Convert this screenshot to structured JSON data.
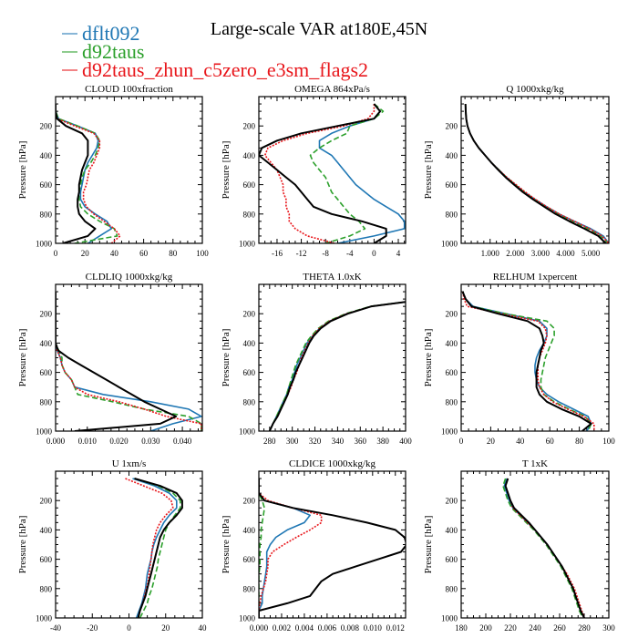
{
  "chart_data": {
    "type": "line",
    "title": "Large-scale VAR at180E,45N",
    "ylabel": "Pressure [hPa]",
    "ylim": [
      1000,
      0
    ],
    "yticks": [
      200,
      400,
      600,
      800,
      1000
    ],
    "legend_placement": "top-left",
    "series_meta": [
      {
        "key": "b",
        "name": "dflt092",
        "color": "#1f77b4",
        "style": "solid"
      },
      {
        "key": "g",
        "name": "d92taus",
        "color": "#2ca02c",
        "style": "dashed"
      },
      {
        "key": "r",
        "name": "d92taus_zhun_c5zero_e3sm_flags2",
        "color": "#e8161b",
        "style": "dotted"
      },
      {
        "key": "k",
        "color": "#000000",
        "style": "solid"
      }
    ],
    "pressure": [
      50,
      100,
      150,
      200,
      250,
      300,
      350,
      400,
      450,
      500,
      550,
      600,
      650,
      700,
      750,
      800,
      850,
      900,
      950,
      1000
    ],
    "panels": [
      {
        "title": "CLOUD 100xfraction",
        "xlim": [
          0,
          100
        ],
        "xticks": [
          0,
          20,
          40,
          60,
          80,
          100
        ],
        "xticklabels": [
          "0",
          "20",
          "40",
          "60",
          "80",
          "100"
        ],
        "b": [
          0,
          0,
          2,
          15,
          27,
          29,
          28,
          25,
          22,
          20,
          19,
          18,
          17,
          17,
          20,
          27,
          35,
          38,
          30,
          22
        ],
        "g": [
          0,
          0,
          2,
          15,
          27,
          30,
          29,
          27,
          24,
          20,
          18,
          17,
          16,
          16,
          17,
          22,
          30,
          40,
          42,
          13
        ],
        "r": [
          0,
          0,
          1,
          13,
          26,
          30,
          30,
          28,
          26,
          23,
          22,
          21,
          19,
          19,
          21,
          26,
          33,
          40,
          44,
          38
        ],
        "k": [
          0,
          0,
          1,
          7,
          18,
          22,
          22,
          22,
          20,
          18,
          17,
          16,
          16,
          15,
          15,
          16,
          20,
          27,
          22,
          5
        ]
      },
      {
        "title": "OMEGA 864xPa/s",
        "xlim": [
          -19,
          5.2
        ],
        "xticks": [
          -16,
          -12,
          -8,
          -4,
          0,
          4
        ],
        "xticklabels": [
          "-16",
          "-12",
          "-8",
          "-4",
          "0",
          "4"
        ],
        "b": [
          0,
          1,
          0,
          -4,
          -7,
          -9,
          -9,
          -7,
          -6,
          -5,
          -4,
          -3,
          -1.5,
          0,
          2,
          4,
          5,
          5,
          0,
          -6
        ],
        "g": [
          0,
          1.5,
          0,
          -4,
          -4.5,
          -7,
          -9,
          -10.5,
          -10,
          -9,
          -8,
          -7.5,
          -7,
          -6,
          -5,
          -4,
          -2.5,
          -1.5,
          -4,
          -8
        ],
        "r": [
          0,
          0,
          -1,
          -5,
          -11,
          -15,
          -17.5,
          -18,
          -17,
          -16,
          -15.5,
          -15,
          -15,
          -14.5,
          -14.5,
          -14,
          -14,
          -13,
          -11,
          -6.5
        ],
        "k": [
          0,
          1,
          0,
          -6,
          -12,
          -16,
          -18.5,
          -19,
          -17.5,
          -16,
          -14.5,
          -13,
          -12,
          -11,
          -10,
          -7,
          -2,
          2,
          2,
          0
        ]
      },
      {
        "title": "Q 1000xkg/kg",
        "xlim": [
          -0.15,
          5.72
        ],
        "xticks": [
          1,
          2,
          3,
          4,
          5
        ],
        "xticklabels": [
          "1.000",
          "2.000",
          "3.000",
          "4.000",
          "5.000"
        ],
        "b": [
          0.02,
          0.03,
          0.05,
          0.1,
          0.2,
          0.35,
          0.55,
          0.8,
          1.05,
          1.35,
          1.65,
          2.0,
          2.35,
          2.78,
          3.25,
          3.75,
          4.35,
          5.0,
          5.5,
          5.72
        ],
        "g": [
          0.02,
          0.03,
          0.05,
          0.1,
          0.2,
          0.35,
          0.55,
          0.8,
          1.05,
          1.35,
          1.65,
          2.0,
          2.35,
          2.75,
          3.2,
          3.7,
          4.25,
          4.9,
          5.4,
          5.7
        ],
        "r": [
          0.02,
          0.03,
          0.05,
          0.1,
          0.2,
          0.35,
          0.55,
          0.8,
          1.05,
          1.35,
          1.67,
          2.03,
          2.4,
          2.8,
          3.25,
          3.75,
          4.35,
          4.95,
          5.45,
          5.72
        ],
        "k": [
          0.02,
          0.03,
          0.05,
          0.1,
          0.2,
          0.35,
          0.55,
          0.8,
          1.05,
          1.33,
          1.62,
          1.95,
          2.3,
          2.7,
          3.15,
          3.6,
          4.15,
          4.75,
          5.3,
          5.6
        ]
      },
      {
        "title": "CLDLIQ 1000xkg/kg",
        "xlim": [
          0,
          0.0463
        ],
        "xticks": [
          0,
          0.01,
          0.02,
          0.03,
          0.04
        ],
        "xticklabels": [
          "0.000",
          "0.010",
          "0.020",
          "0.030",
          "0.040"
        ],
        "b": [
          0,
          0,
          0,
          0,
          0,
          0,
          0,
          0,
          0.0005,
          0.0015,
          0.002,
          0.003,
          0.005,
          0.006,
          0.015,
          0.03,
          0.042,
          0.046,
          0.037,
          0.03
        ],
        "g": [
          0,
          0,
          0,
          0,
          0,
          0,
          0,
          0,
          0.001,
          0.002,
          0.002,
          0.003,
          0.005,
          0.006,
          0.007,
          0.018,
          0.028,
          0.042,
          0.046,
          0.046
        ],
        "r": [
          0,
          0,
          0,
          0,
          0,
          0,
          0,
          0,
          0.0005,
          0.0015,
          0.002,
          0.003,
          0.005,
          0.006,
          0.01,
          0.02,
          0.028,
          0.035,
          0.046,
          0.046
        ],
        "k": [
          0,
          0,
          0,
          0,
          0,
          0,
          0,
          0,
          0.0008,
          0.004,
          0.008,
          0.012,
          0.016,
          0.02,
          0.024,
          0.028,
          0.033,
          0.038,
          0.033,
          0.006
        ]
      },
      {
        "title": "THETA 1.0xK",
        "xlim": [
          270.5,
          400
        ],
        "xticks": [
          280,
          300,
          320,
          340,
          360,
          380,
          400
        ],
        "xticklabels": [
          "280",
          "300",
          "320",
          "340",
          "360",
          "380",
          "400"
        ],
        "b": [
          460,
          420,
          370,
          348,
          333,
          324,
          318,
          313,
          310,
          307,
          304,
          302,
          300,
          297,
          295,
          292,
          289,
          286,
          283,
          280
        ],
        "g": [
          460,
          419,
          369,
          347,
          332,
          323,
          317,
          312,
          309,
          306,
          303,
          301,
          299,
          297,
          295,
          292,
          289,
          286,
          283,
          280
        ],
        "r": [
          460,
          420,
          370,
          348,
          333,
          324,
          318,
          314,
          311,
          308,
          306,
          304,
          301,
          299,
          296,
          293,
          290,
          287,
          283,
          280
        ],
        "k": [
          460,
          420,
          370,
          349,
          334,
          325,
          319,
          315,
          312,
          309,
          306,
          303,
          301,
          298,
          296,
          293,
          290,
          287,
          283,
          280
        ]
      },
      {
        "title": "RELHUM 1xpercent",
        "xlim": [
          0,
          100
        ],
        "xticks": [
          0,
          20,
          40,
          60,
          80,
          100
        ],
        "xticklabels": [
          "0",
          "20",
          "40",
          "60",
          "80",
          "100"
        ],
        "b": [
          1,
          3,
          8,
          30,
          53,
          58,
          58,
          56,
          53,
          51,
          50,
          50,
          51,
          53,
          58,
          66,
          76,
          86,
          88,
          85
        ],
        "g": [
          1,
          3,
          7,
          30,
          58,
          63,
          63,
          61,
          59,
          57,
          56,
          55,
          54,
          54,
          56,
          63,
          73,
          84,
          88,
          86
        ],
        "r": [
          1,
          2,
          4,
          27,
          52,
          57,
          58,
          57,
          55,
          53,
          52,
          52,
          52,
          53,
          56,
          62,
          72,
          83,
          90,
          90
        ],
        "k": [
          1,
          3,
          7,
          25,
          45,
          53,
          55,
          56,
          54,
          53,
          52,
          51,
          51,
          51,
          53,
          58,
          68,
          80,
          88,
          82
        ]
      },
      {
        "title": "U 1xm/s",
        "xlim": [
          -40,
          40
        ],
        "xticks": [
          -40,
          -20,
          0,
          20,
          40
        ],
        "xticklabels": [
          "-40",
          "-20",
          "0",
          "20",
          "40"
        ],
        "b": [
          2,
          14,
          22,
          26,
          26,
          22,
          19,
          17,
          15,
          13.5,
          12.5,
          12,
          11,
          10,
          9.5,
          9,
          8,
          7,
          5.5,
          4
        ],
        "g": [
          3,
          16,
          24,
          28,
          28,
          25,
          22,
          20,
          19,
          18,
          17,
          16,
          15.5,
          14.5,
          13.5,
          12.5,
          11,
          10,
          8,
          6
        ],
        "r": [
          -2,
          8,
          18,
          23,
          24,
          20,
          17,
          15,
          14,
          13,
          12.5,
          12,
          11.5,
          11,
          10.5,
          9.5,
          8.5,
          7.5,
          6,
          5
        ],
        "k": [
          3,
          17,
          26,
          29,
          29,
          26,
          22,
          19,
          17,
          16,
          15,
          14,
          13,
          12,
          11,
          10,
          9,
          7.5,
          6,
          5
        ]
      },
      {
        "title": "CLDICE 1000xkg/kg",
        "xlim": [
          0,
          0.0129
        ],
        "xticks": [
          0,
          0.002,
          0.004,
          0.006,
          0.008,
          0.01,
          0.012
        ],
        "xticklabels": [
          "0.000",
          "0.002",
          "0.004",
          "0.006",
          "0.008",
          "0.010",
          "0.012"
        ],
        "b": [
          0,
          0,
          0,
          0.0005,
          0.003,
          0.0045,
          0.004,
          0.0025,
          0.0015,
          0.001,
          0.0007,
          0.0007,
          0.0007,
          0.0006,
          0.0005,
          0.0004,
          0.0003,
          0.0003,
          0,
          0
        ],
        "g": [
          0,
          0,
          0,
          0.0003,
          0.0005,
          0.0004,
          0.0003,
          0.0002,
          0.0002,
          0.0001,
          0.0001,
          0.0001,
          0.0001,
          0,
          0,
          0,
          0,
          0,
          0,
          0
        ],
        "r": [
          0,
          0,
          0,
          0.0008,
          0.003,
          0.0055,
          0.0055,
          0.0045,
          0.0033,
          0.0022,
          0.0012,
          0.0008,
          0.0008,
          0.0007,
          0.0006,
          0.0004,
          0.0002,
          0.0001,
          0,
          0
        ],
        "k": [
          0,
          0,
          0,
          0.0005,
          0.003,
          0.0065,
          0.0095,
          0.012,
          0.0128,
          0.013,
          0.0125,
          0.0105,
          0.0085,
          0.0065,
          0.0055,
          0.005,
          0.0045,
          0.0025,
          0,
          0
        ]
      },
      {
        "title": "T 1xK",
        "xlim": [
          180,
          300
        ],
        "xticks": [
          180,
          200,
          220,
          240,
          260,
          280,
          300
        ],
        "xticklabels": [
          "180",
          "200",
          "220",
          "240",
          "260",
          "280",
          "300"
        ],
        "b": [
          217,
          215,
          217,
          219,
          222,
          228,
          234,
          240,
          245,
          250,
          254,
          258,
          262,
          265,
          268,
          271,
          273,
          275,
          277,
          280
        ],
        "g": [
          216,
          214,
          216,
          218,
          221,
          227,
          233,
          239,
          244,
          249,
          253,
          257,
          261,
          264,
          267,
          270,
          272,
          274,
          276,
          279
        ],
        "r": [
          218,
          216,
          218,
          220,
          222,
          228,
          234,
          240,
          245,
          250,
          254,
          258,
          262,
          266,
          269,
          272,
          274,
          276,
          278,
          280
        ],
        "k": [
          218,
          216,
          218,
          220,
          223,
          229,
          235,
          240,
          245,
          250,
          254,
          258,
          262,
          265,
          268,
          271,
          273,
          275,
          277,
          280
        ]
      }
    ]
  }
}
